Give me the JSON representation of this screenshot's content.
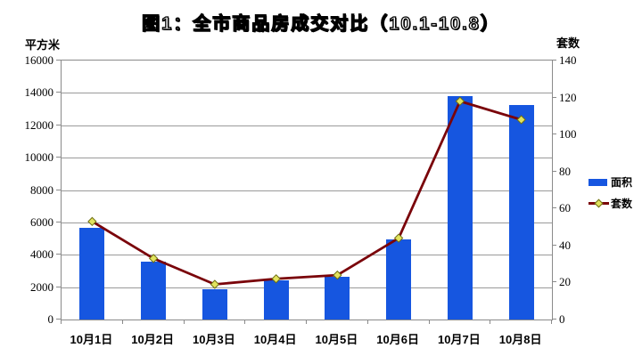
{
  "chart_data": {
    "type": "bar",
    "combo": "bar + line, dual y-axis",
    "title": "图1：全市商品房成交对比（10.1-10.8）",
    "categories": [
      "10月1日",
      "10月2日",
      "10月3日",
      "10月4日",
      "10月5日",
      "10月6日",
      "10月7日",
      "10月8日"
    ],
    "series": [
      {
        "name": "面积",
        "type": "bar",
        "axis": "left",
        "color": "#1656e0",
        "values": [
          5650,
          3550,
          1850,
          2400,
          2650,
          4950,
          13800,
          13250
        ]
      },
      {
        "name": "套数",
        "type": "line",
        "axis": "right",
        "color": "#7a040a",
        "marker": "diamond",
        "marker_color": "#e2e35e",
        "marker_edge_color": "#6e6e14",
        "values": [
          53,
          33,
          19,
          22,
          24,
          44,
          118,
          108
        ]
      }
    ],
    "left_axis": {
      "label": "平方米",
      "min": 0,
      "max": 16000,
      "step": 2000,
      "ticks": [
        "0",
        "2000",
        "4000",
        "6000",
        "8000",
        "10000",
        "12000",
        "14000",
        "16000"
      ]
    },
    "right_axis": {
      "label": "套数",
      "min": 0,
      "max": 140,
      "step": 20,
      "ticks": [
        "0",
        "20",
        "40",
        "60",
        "80",
        "100",
        "120",
        "140"
      ]
    },
    "grid": true,
    "legend_position": "right-middle",
    "colors": {
      "grid_line": "#9a9a9a",
      "plot_border": "#8a8a8a",
      "text": "#000000"
    }
  }
}
